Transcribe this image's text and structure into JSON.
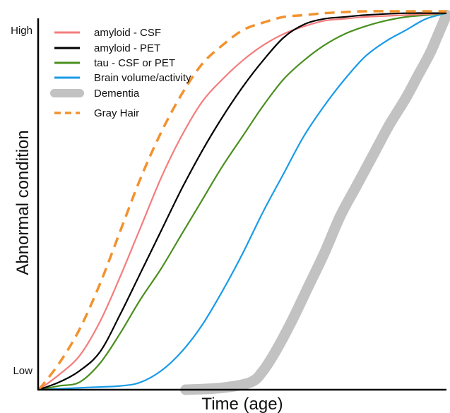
{
  "chart_data": {
    "type": "line",
    "title": "",
    "xlabel": "Time (age)",
    "ylabel": "Abnormal condition",
    "x_ticks": [],
    "y_ticks": [
      "Low",
      "High"
    ],
    "y_ticks_values": [
      0.05,
      0.95
    ],
    "xlim": [
      0,
      1
    ],
    "ylim": [
      0,
      1
    ],
    "grid": false,
    "legend_position": "top-left",
    "series": [
      {
        "name": "amyloid - CSF",
        "color": "#f47c7c",
        "style": "solid",
        "x": [
          0.0,
          0.05,
          0.1,
          0.15,
          0.2,
          0.25,
          0.3,
          0.35,
          0.4,
          0.45,
          0.5,
          0.55,
          0.6,
          0.65,
          0.7,
          0.75,
          0.8,
          0.9,
          1.0
        ],
        "y": [
          0.0,
          0.04,
          0.09,
          0.18,
          0.3,
          0.43,
          0.56,
          0.67,
          0.76,
          0.82,
          0.87,
          0.91,
          0.94,
          0.96,
          0.975,
          0.98,
          0.985,
          0.99,
          0.995
        ]
      },
      {
        "name": "amyloid - PET",
        "color": "#000000",
        "style": "solid",
        "x": [
          0.0,
          0.05,
          0.1,
          0.15,
          0.2,
          0.25,
          0.3,
          0.35,
          0.4,
          0.45,
          0.5,
          0.55,
          0.6,
          0.65,
          0.7,
          0.75,
          0.8,
          0.9,
          1.0
        ],
        "y": [
          0.0,
          0.02,
          0.05,
          0.1,
          0.2,
          0.31,
          0.42,
          0.53,
          0.63,
          0.72,
          0.8,
          0.87,
          0.93,
          0.965,
          0.98,
          0.985,
          0.99,
          0.995,
          0.995
        ]
      },
      {
        "name": "tau - CSF or PET",
        "color": "#4a8f1e",
        "style": "solid",
        "x": [
          0.0,
          0.05,
          0.1,
          0.15,
          0.2,
          0.25,
          0.3,
          0.35,
          0.4,
          0.45,
          0.5,
          0.55,
          0.6,
          0.65,
          0.7,
          0.75,
          0.8,
          0.85,
          0.9,
          0.95,
          1.0
        ],
        "y": [
          0.0,
          0.01,
          0.02,
          0.07,
          0.15,
          0.24,
          0.32,
          0.41,
          0.5,
          0.59,
          0.67,
          0.75,
          0.82,
          0.87,
          0.91,
          0.94,
          0.96,
          0.975,
          0.985,
          0.99,
          0.995
        ]
      },
      {
        "name": "Brain volume/activity",
        "color": "#1a9be8",
        "style": "solid",
        "x": [
          0.0,
          0.1,
          0.2,
          0.25,
          0.3,
          0.35,
          0.4,
          0.45,
          0.5,
          0.55,
          0.6,
          0.65,
          0.7,
          0.75,
          0.8,
          0.85,
          0.9,
          0.95,
          1.0
        ],
        "y": [
          0.0,
          0.005,
          0.01,
          0.02,
          0.05,
          0.1,
          0.17,
          0.26,
          0.36,
          0.47,
          0.57,
          0.67,
          0.75,
          0.82,
          0.88,
          0.92,
          0.95,
          0.98,
          0.995
        ]
      },
      {
        "name": "Dementia",
        "color": "#c2c2c2",
        "style": "thick",
        "x": [
          0.36,
          0.45,
          0.52,
          0.55,
          0.58,
          0.62,
          0.66,
          0.7,
          0.74,
          0.78,
          0.82,
          0.86,
          0.9,
          0.93,
          0.96,
          0.98,
          1.0
        ],
        "y": [
          0.0,
          0.005,
          0.02,
          0.05,
          0.1,
          0.18,
          0.27,
          0.36,
          0.46,
          0.54,
          0.62,
          0.7,
          0.77,
          0.83,
          0.89,
          0.94,
          0.99
        ]
      },
      {
        "name": "Gray Hair",
        "color": "#f2922e",
        "style": "dashed",
        "x": [
          0.0,
          0.05,
          0.1,
          0.15,
          0.2,
          0.25,
          0.3,
          0.35,
          0.4,
          0.45,
          0.5,
          0.55,
          0.6,
          0.65,
          0.7,
          0.75,
          0.8,
          0.9,
          1.0
        ],
        "y": [
          0.0,
          0.07,
          0.16,
          0.28,
          0.42,
          0.56,
          0.68,
          0.78,
          0.86,
          0.91,
          0.95,
          0.97,
          0.985,
          0.99,
          0.995,
          0.998,
          1.0,
          1.0,
          1.0
        ]
      }
    ]
  }
}
